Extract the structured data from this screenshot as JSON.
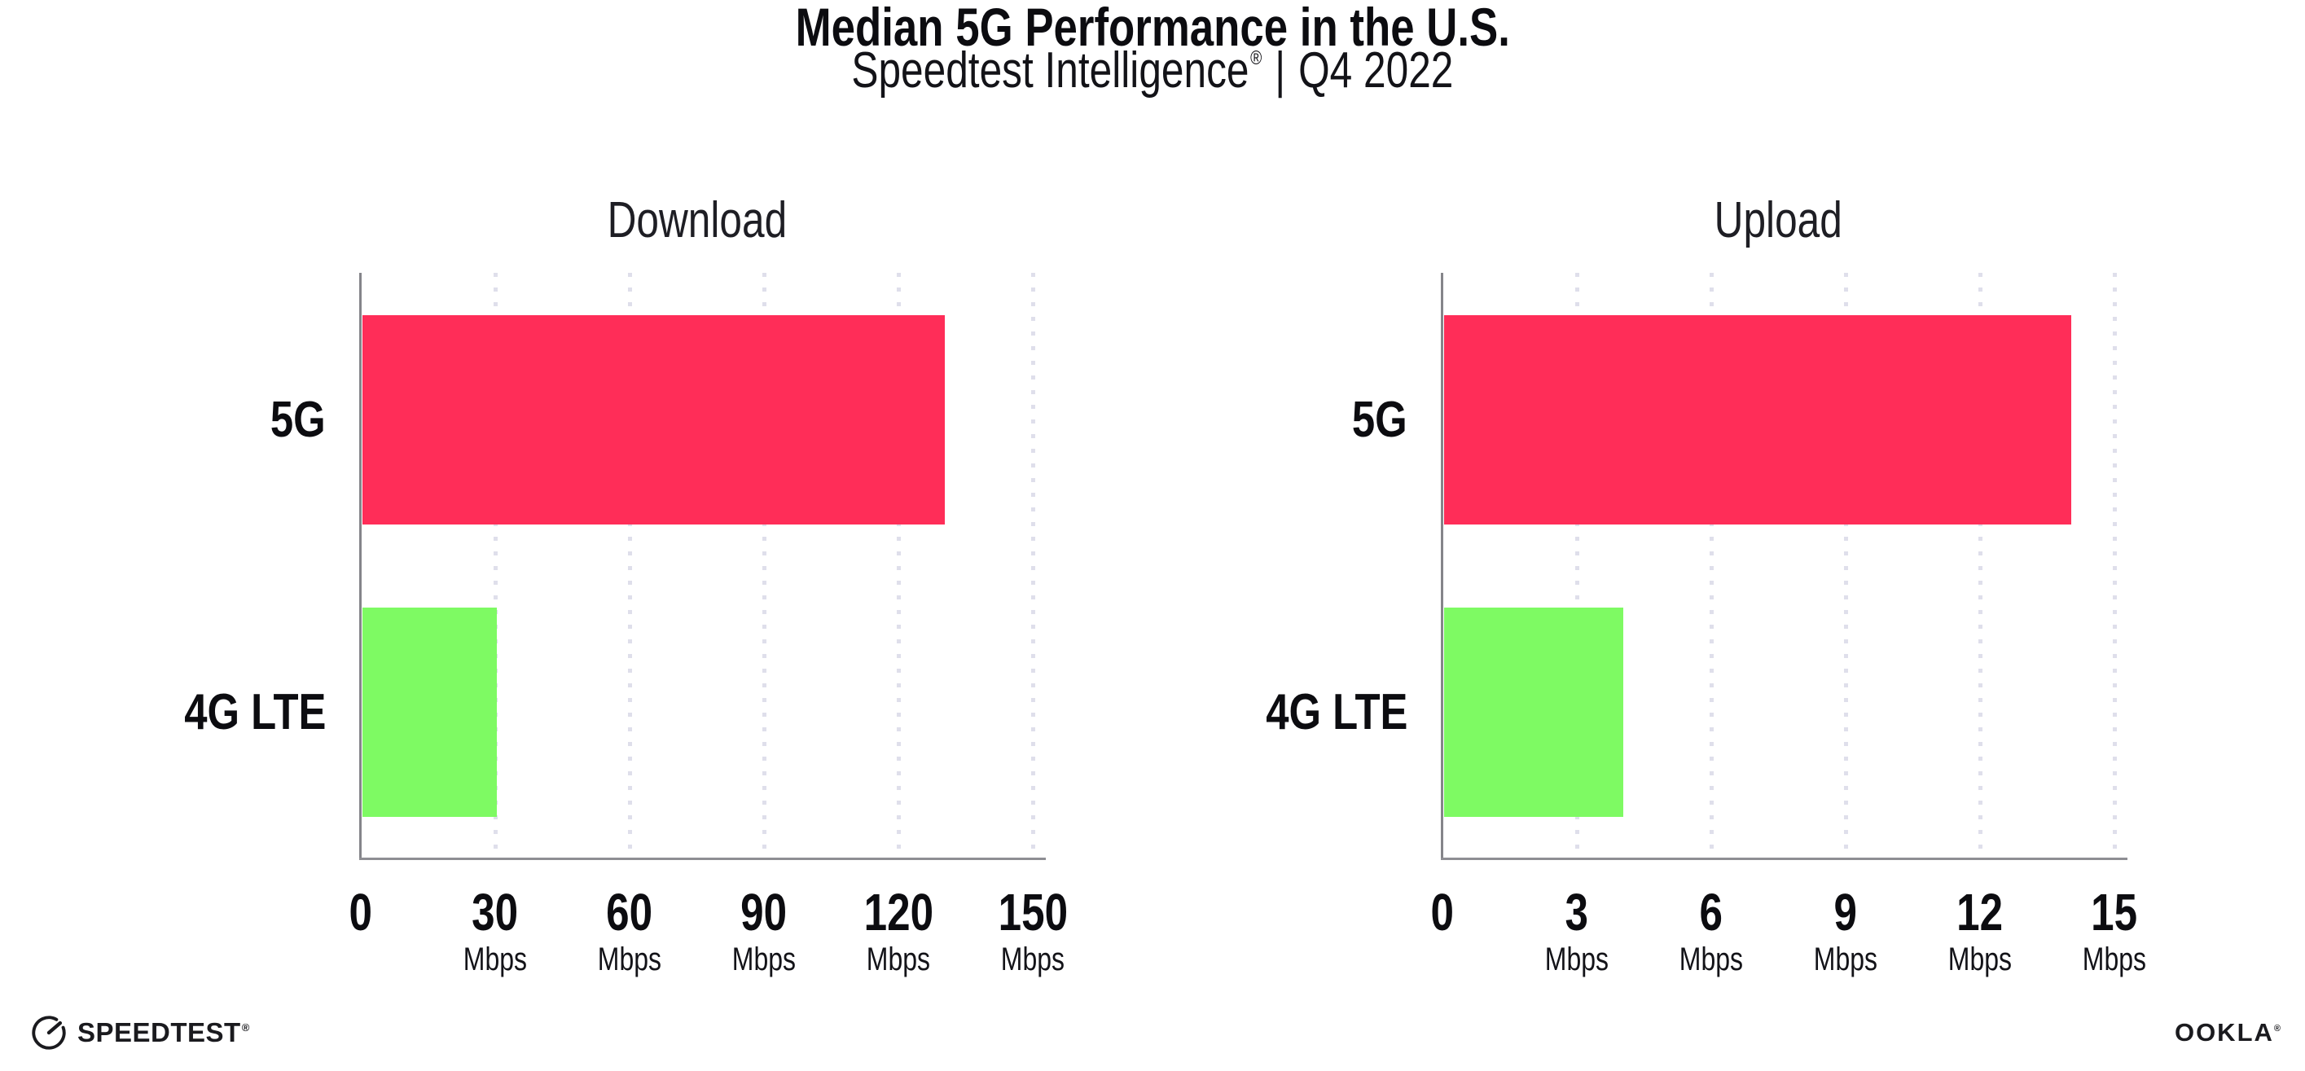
{
  "page": {
    "background": "#ffffff"
  },
  "header": {
    "title": "Median 5G Performance in the U.S.",
    "subtitle": {
      "product": "Speedtest Intelligence",
      "registered_mark": "®",
      "separator": "|",
      "period": "Q4 2022"
    }
  },
  "chart_data": [
    {
      "type": "bar",
      "orientation": "horizontal",
      "title": "Download",
      "categories": [
        "5G",
        "4G LTE"
      ],
      "values": [
        130,
        30
      ],
      "value_unit": "Mbps",
      "xlim": [
        0,
        150
      ],
      "xticks": [
        0,
        30,
        60,
        90,
        120,
        150
      ],
      "xtick_unit": "Mbps",
      "bar_colors": [
        "#ff2d58",
        "#7efa63"
      ],
      "grid": "vertical-dotted",
      "legend": "none"
    },
    {
      "type": "bar",
      "orientation": "horizontal",
      "title": "Upload",
      "categories": [
        "5G",
        "4G LTE"
      ],
      "values": [
        14,
        4
      ],
      "value_unit": "Mbps",
      "xlim": [
        0,
        15
      ],
      "xticks": [
        0,
        3,
        6,
        9,
        12,
        15
      ],
      "xtick_unit": "Mbps",
      "bar_colors": [
        "#ff2d58",
        "#7efa63"
      ],
      "grid": "vertical-dotted",
      "legend": "none"
    }
  ],
  "styles": {
    "bar_5g_color": "#ff2d58",
    "bar_4g_lte_color": "#7efa63",
    "axis_color": "#8e8e93",
    "grid_dot_color": "#dfdfeb",
    "text_color": "#131318"
  },
  "footer": {
    "speedtest_label": "SPEEDTEST",
    "speedtest_mark": "®",
    "speedtest_icon": "speedtest-gauge-icon",
    "ookla_label": "OOKLA",
    "ookla_mark": "®"
  }
}
